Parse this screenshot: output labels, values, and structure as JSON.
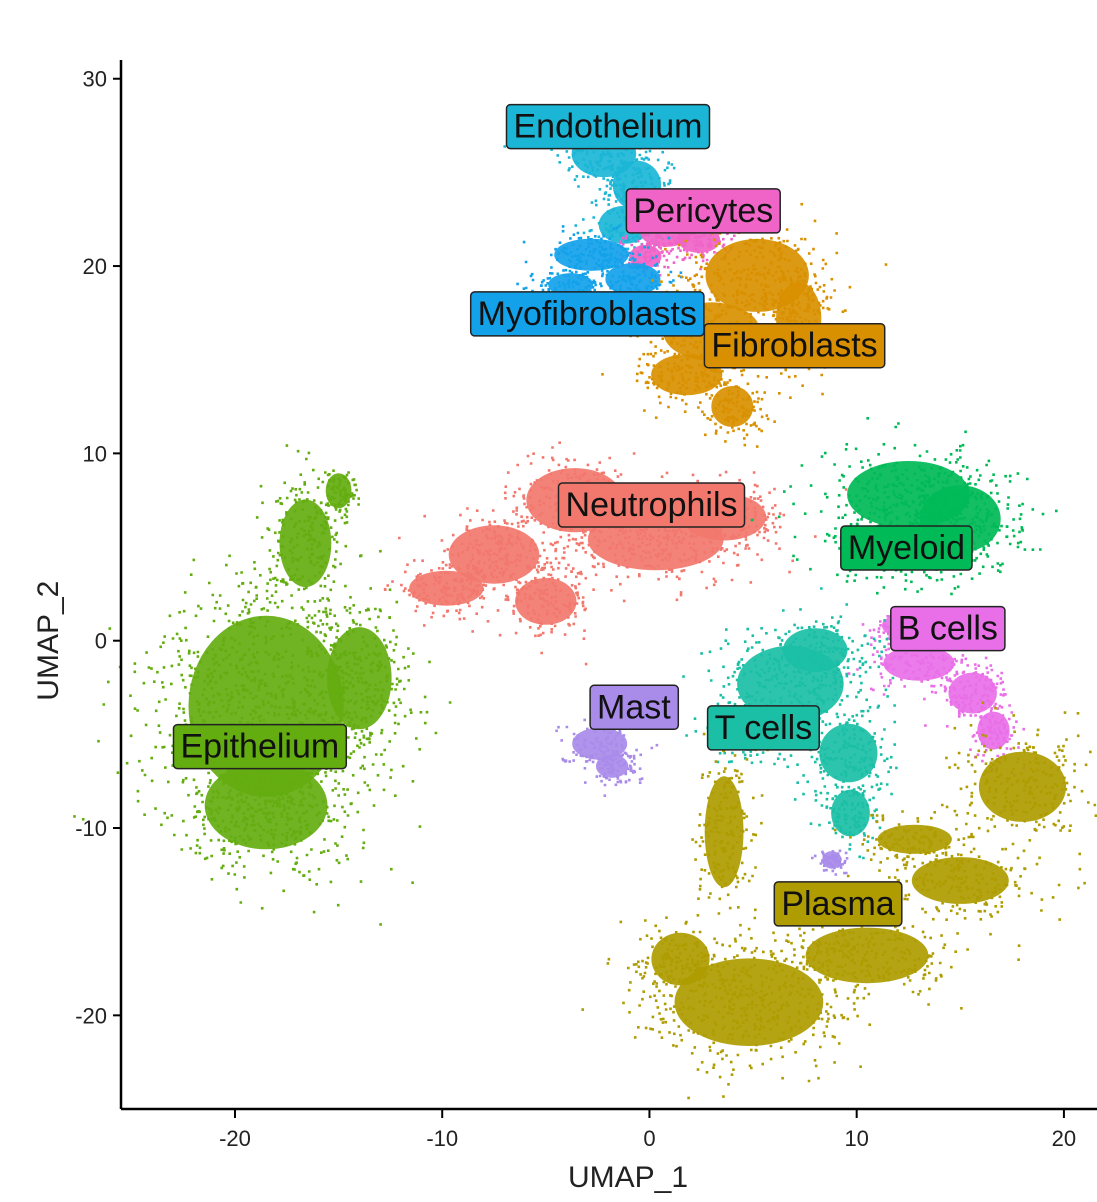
{
  "chart_data": {
    "type": "scatter",
    "title": "",
    "xlabel": "UMAP_1",
    "ylabel": "UMAP_2",
    "xlim": [
      -25.5,
      21.5
    ],
    "ylim": [
      -25,
      31
    ],
    "xticks": [
      -20,
      -10,
      0,
      10,
      20
    ],
    "yticks": [
      -20,
      -10,
      0,
      10,
      20,
      30
    ],
    "xtick_labels": [
      "-20",
      "-10",
      "0",
      "10",
      "20"
    ],
    "ytick_labels": [
      "-20",
      "-10",
      "0",
      "10",
      "20",
      "30"
    ],
    "grid": false,
    "legend": "none",
    "clusters": [
      {
        "name": "Endothelium",
        "color": "#1BB6D6",
        "label_x": -2.0,
        "label_y": 27.5,
        "blobs": [
          [
            -2.2,
            26.0,
            2.0,
            1.6
          ],
          [
            -0.6,
            24.3,
            1.5,
            1.7
          ],
          [
            -1.2,
            22.2,
            1.6,
            1.3
          ]
        ]
      },
      {
        "name": "Pericytes",
        "color": "#F064C8",
        "label_x": 2.6,
        "label_y": 23.0,
        "blobs": [
          [
            0.8,
            21.8,
            1.6,
            1.0
          ],
          [
            2.4,
            21.4,
            1.3,
            0.9
          ],
          [
            -0.2,
            20.5,
            1.0,
            0.8
          ]
        ]
      },
      {
        "name": "Myofibroblasts",
        "color": "#13A2EA",
        "label_x": -3.0,
        "label_y": 17.5,
        "blobs": [
          [
            -2.8,
            20.6,
            2.3,
            1.1
          ],
          [
            -0.8,
            19.3,
            1.7,
            1.1
          ],
          [
            -3.8,
            19.0,
            1.4,
            0.8
          ]
        ]
      },
      {
        "name": "Fibroblasts",
        "color": "#D99000",
        "label_x": 7.0,
        "label_y": 15.8,
        "blobs": [
          [
            5.2,
            19.5,
            3.2,
            2.5
          ],
          [
            3.0,
            16.5,
            3.0,
            2.0
          ],
          [
            1.8,
            14.2,
            2.2,
            1.4
          ],
          [
            4.0,
            12.5,
            1.3,
            1.4
          ],
          [
            7.2,
            17.2,
            1.4,
            2.5
          ]
        ]
      },
      {
        "name": "Neutrophils",
        "color": "#F2786E",
        "label_x": 0.1,
        "label_y": 7.3,
        "blobs": [
          [
            -3.6,
            7.5,
            3.0,
            2.2
          ],
          [
            0.3,
            5.4,
            4.2,
            2.1
          ],
          [
            -7.5,
            4.6,
            2.8,
            2.0
          ],
          [
            -9.8,
            2.8,
            2.3,
            1.2
          ],
          [
            -5.0,
            2.1,
            1.9,
            1.6
          ],
          [
            3.6,
            6.6,
            2.6,
            1.6
          ]
        ]
      },
      {
        "name": "Myeloid",
        "color": "#00BA57",
        "label_x": 12.4,
        "label_y": 5.0,
        "blobs": [
          [
            12.5,
            7.8,
            3.8,
            2.3
          ],
          [
            15.0,
            6.5,
            2.5,
            2.3
          ],
          [
            11.2,
            5.0,
            2.2,
            1.5
          ],
          [
            13.8,
            4.8,
            2.0,
            1.3
          ]
        ]
      },
      {
        "name": "B cells",
        "color": "#E96FE8",
        "label_x": 14.4,
        "label_y": 0.7,
        "blobs": [
          [
            13.0,
            -1.2,
            2.2,
            1.2
          ],
          [
            15.6,
            -2.8,
            1.5,
            1.4
          ],
          [
            16.6,
            -4.8,
            1.0,
            1.3
          ],
          [
            12.0,
            0.8,
            1.0,
            0.7
          ]
        ]
      },
      {
        "name": "T cells",
        "color": "#1BBFA6",
        "label_x": 5.5,
        "label_y": -4.6,
        "blobs": [
          [
            6.8,
            -2.3,
            3.3,
            2.6
          ],
          [
            9.6,
            -6.0,
            1.8,
            2.0
          ],
          [
            9.7,
            -9.2,
            1.2,
            1.6
          ],
          [
            4.8,
            -4.8,
            1.8,
            1.4
          ],
          [
            8.0,
            -0.5,
            2.0,
            1.5
          ]
        ]
      },
      {
        "name": "Mast",
        "color": "#A98BEA",
        "label_x": -0.75,
        "label_y": -3.5,
        "blobs": [
          [
            -2.4,
            -5.5,
            1.7,
            1.1
          ],
          [
            -1.8,
            -6.7,
            1.0,
            0.8
          ],
          [
            8.8,
            -11.7,
            0.6,
            0.6
          ]
        ]
      },
      {
        "name": "Plasma",
        "color": "#AE9C00",
        "label_x": 9.1,
        "label_y": -14.0,
        "blobs": [
          [
            4.8,
            -19.3,
            4.6,
            3.0
          ],
          [
            10.5,
            -16.8,
            3.8,
            1.9
          ],
          [
            15.0,
            -12.8,
            3.0,
            1.6
          ],
          [
            18.0,
            -7.8,
            2.7,
            2.4
          ],
          [
            3.6,
            -10.2,
            1.2,
            3.8
          ],
          [
            1.5,
            -17.0,
            1.8,
            1.8
          ],
          [
            12.8,
            -10.6,
            2.3,
            1.0
          ]
        ]
      },
      {
        "name": "Epithelium",
        "color": "#64AD10",
        "label_x": -18.8,
        "label_y": -5.6,
        "blobs": [
          [
            -18.5,
            -3.5,
            4.8,
            6.2
          ],
          [
            -18.5,
            -8.8,
            3.8,
            3.0
          ],
          [
            -16.6,
            5.2,
            1.6,
            3.0
          ],
          [
            -15.0,
            8.0,
            0.8,
            1.2
          ],
          [
            -14.0,
            -2.0,
            2.0,
            3.5
          ]
        ]
      }
    ]
  }
}
